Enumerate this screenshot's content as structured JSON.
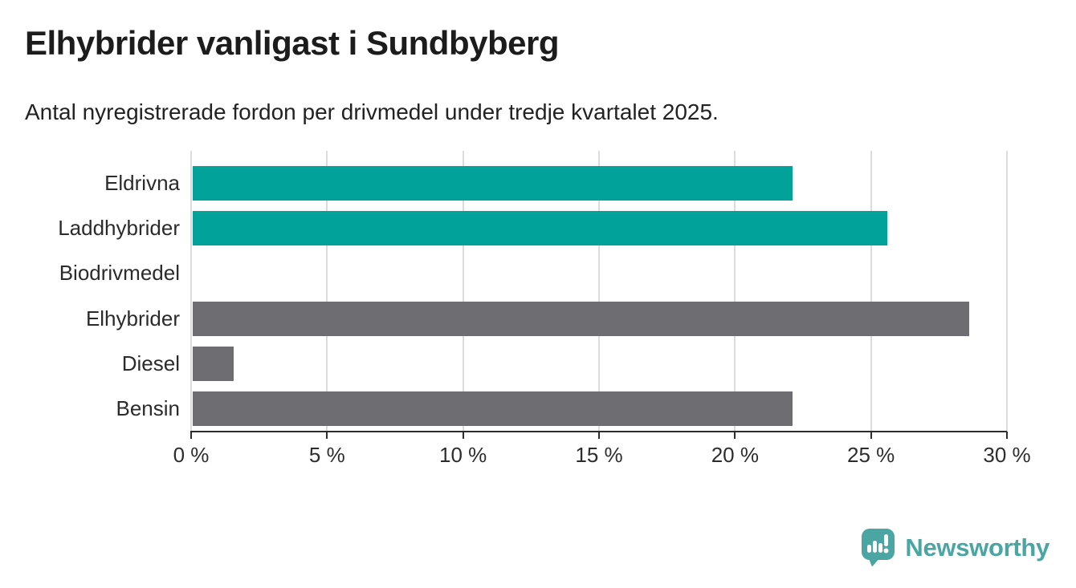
{
  "title": "Elhybrider vanligast i Sundbyberg",
  "subtitle": "Antal nyregistrerade fordon per drivmedel under tredje kvartalet 2025.",
  "chart_data": {
    "type": "bar",
    "orientation": "horizontal",
    "categories": [
      "Eldrivna",
      "Laddhybrider",
      "Biodrivmedel",
      "Elhybrider",
      "Diesel",
      "Bensin"
    ],
    "values": [
      22.1,
      25.6,
      0,
      28.6,
      1.5,
      22.1
    ],
    "unit": "%",
    "series_colors": [
      "#00a29a",
      "#00a29a",
      "#00a29a",
      "#6e6e72",
      "#6e6e72",
      "#6e6e72"
    ],
    "xlim": [
      0,
      30
    ],
    "x_ticks": [
      0,
      5,
      10,
      15,
      20,
      25,
      30
    ],
    "x_tick_labels": [
      "0 %",
      "5 %",
      "10 %",
      "15 %",
      "20 %",
      "25 %",
      "30 %"
    ],
    "grid": true,
    "legend": "none",
    "title": "Elhybrider vanligast i Sundbyberg",
    "xlabel": "",
    "ylabel": ""
  },
  "colors": {
    "teal_bar": "#00a29a",
    "gray_bar": "#6e6e72",
    "gridline": "#dcdcdc",
    "axis": "#2d2d2d",
    "title_text": "#1c1c1c",
    "body_text": "#2b2b2b",
    "logo_teal": "#4ba5a2"
  },
  "branding": {
    "logo_text": "Newsworthy",
    "logo_icon": "newsworthy-speech-bubble-bar-chart-icon"
  }
}
